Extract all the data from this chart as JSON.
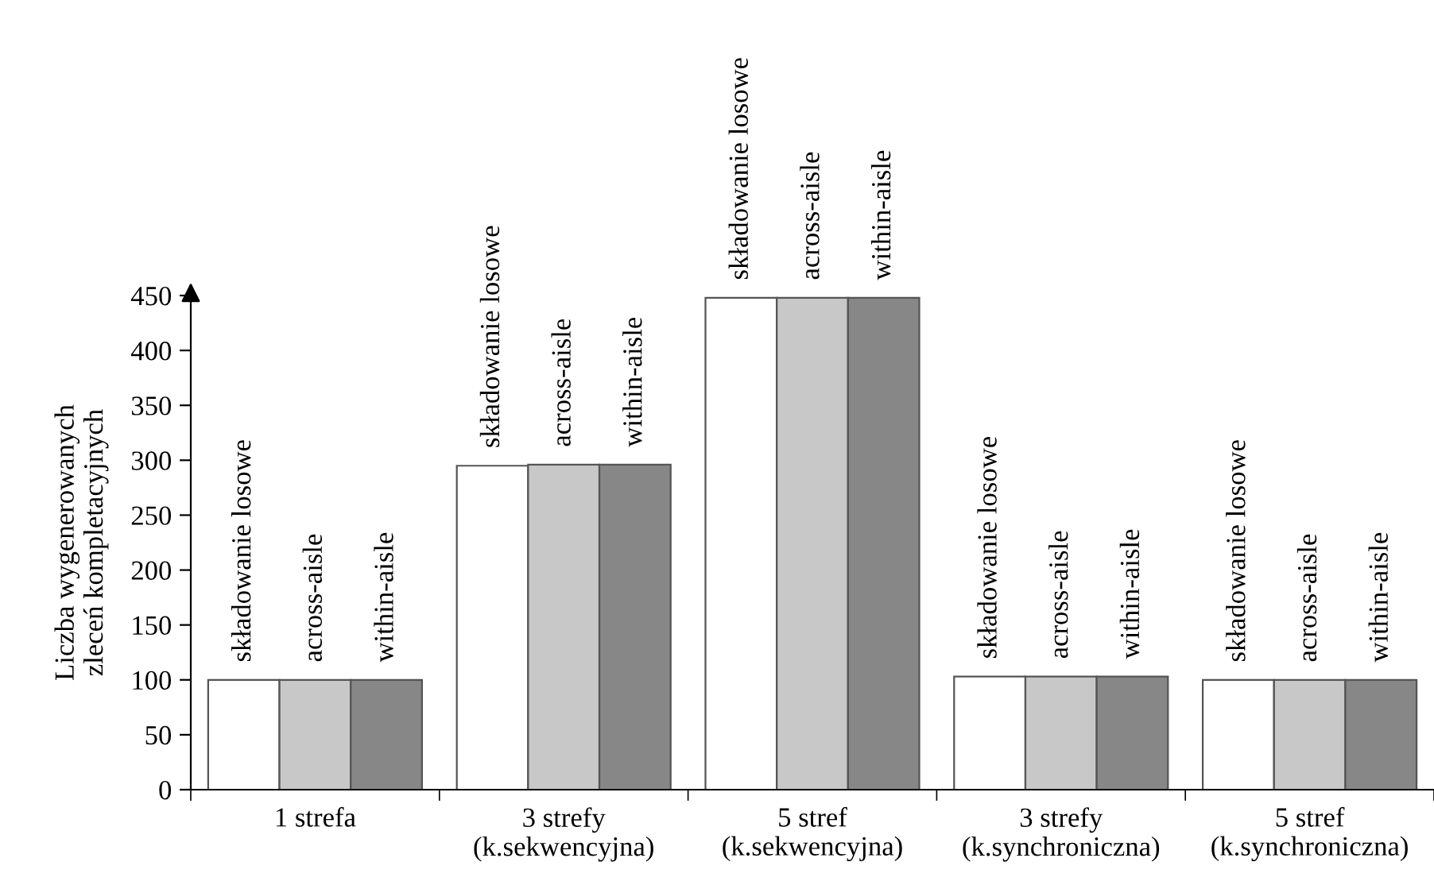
{
  "chart_data": {
    "type": "bar",
    "ylabel": "Liczba wygenerowanych\nzleceń kompletacyjnych",
    "categories": [
      "1 strefa",
      "3 strefy\n(k.sekwencyjna)",
      "5 stref\n(k.sekwencyjna)",
      "3 strefy\n(k.synchroniczna)",
      "5 stref\n(k.synchroniczna)"
    ],
    "series": [
      {
        "name": "składowanie losowe",
        "color": "#ffffff",
        "values": [
          100,
          295,
          448,
          103,
          100
        ]
      },
      {
        "name": "across-aisle",
        "color": "#c8c8c8",
        "values": [
          100,
          296,
          448,
          103,
          100
        ]
      },
      {
        "name": "within-aisle",
        "color": "#878787",
        "values": [
          100,
          296,
          448,
          103,
          100
        ]
      }
    ],
    "ylim": [
      0,
      450
    ],
    "yticks": [
      0,
      50,
      100,
      150,
      200,
      250,
      300,
      350,
      400,
      450
    ],
    "grid": false,
    "legend": false
  }
}
